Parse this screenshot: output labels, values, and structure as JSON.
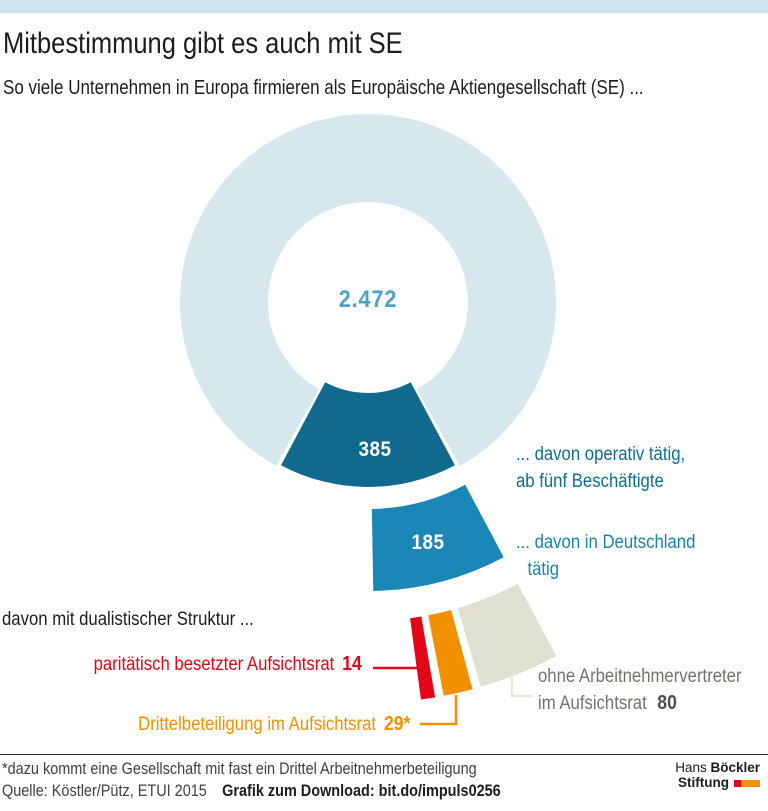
{
  "colors": {
    "topbar": "#cfe3ee",
    "ring": "#d6e7ee",
    "red": "#e30617",
    "orange": "#f19100",
    "beige": "#e0e0d2",
    "total-text": "#4aa2c8",
    "label-blue-dark": "#0e6e92",
    "label-blue-mid": "#1486b4",
    "label-gray": "#73736b",
    "label-gray-strong": "#514f49",
    "text": "#1d1d1b",
    "footer-gray": "#3f3f3e",
    "logo-red": "#e2001a",
    "logo-orange": "#f59100",
    "leader-beige": "#e7e7da"
  },
  "header": {
    "title": "Mitbestimmung gibt es auch mit SE",
    "subtitle": "So viele Unternehmen in Europa firmieren als Europäische Aktiengesellschaft (SE) ..."
  },
  "chart_data": {
    "type": "pie",
    "variant": "exploded-donut-cascade",
    "title": "Mitbestimmung gibt es auch mit SE",
    "total": {
      "value": 2472,
      "display": "2.472"
    },
    "rings": [
      {
        "name": "se-gesamt",
        "value": 2472,
        "display": "2.472",
        "color": "#d6e7ee",
        "label": "So viele Unternehmen in Europa firmieren als Europäische Aktiengesellschaft (SE) ..."
      },
      {
        "name": "operativ-taetig",
        "value": 385,
        "display": "385",
        "color": "#116a8e",
        "label": "... davon operativ tätig, ab fünf Beschäftigte",
        "label_lines": [
          "... davon operativ tätig,",
          "ab fünf Beschäftigte"
        ]
      },
      {
        "name": "deutschland-taetig",
        "value": 185,
        "display": "185",
        "color": "#1b87b7",
        "label": "... davon in Deutschland tätig",
        "label_lines": [
          "... davon in Deutschland",
          "tätig"
        ]
      }
    ],
    "sub_title": "davon mit dualistischer Struktur ...",
    "sub_segments": [
      {
        "name": "paritaetisch-besetzt",
        "value": 14,
        "display": "14",
        "color": "#e30617",
        "label": "paritätisch besetzter Aufsichtsrat"
      },
      {
        "name": "drittelbeteiligung",
        "value": 29,
        "display": "29*",
        "color": "#f19100",
        "label": "Drittelbeteiligung im Aufsichtsrat"
      },
      {
        "name": "ohne-arbeitnehmervertreter",
        "value": 80,
        "display": "80",
        "color": "#e0e0d2",
        "label": "ohne Arbeitnehmervertreter im Aufsichtsrat",
        "label_lines": [
          "ohne Arbeitnehmervertreter",
          "im Aufsichtsrat"
        ]
      }
    ],
    "legend_position": "right-and-left-callouts",
    "grid": false
  },
  "footer": {
    "footnote": "*dazu kommt eine Gesellschaft mit fast ein Drittel Arbeitnehmerbeteiligung",
    "source": "Quelle: Köstler/Pütz, ETUI 2015",
    "download": "Grafik zum Download: bit.do/impuls0256"
  },
  "logo": {
    "line1_regular": "Hans",
    "line1_bold": "Böckler",
    "line2_bold": "Stiftung"
  }
}
